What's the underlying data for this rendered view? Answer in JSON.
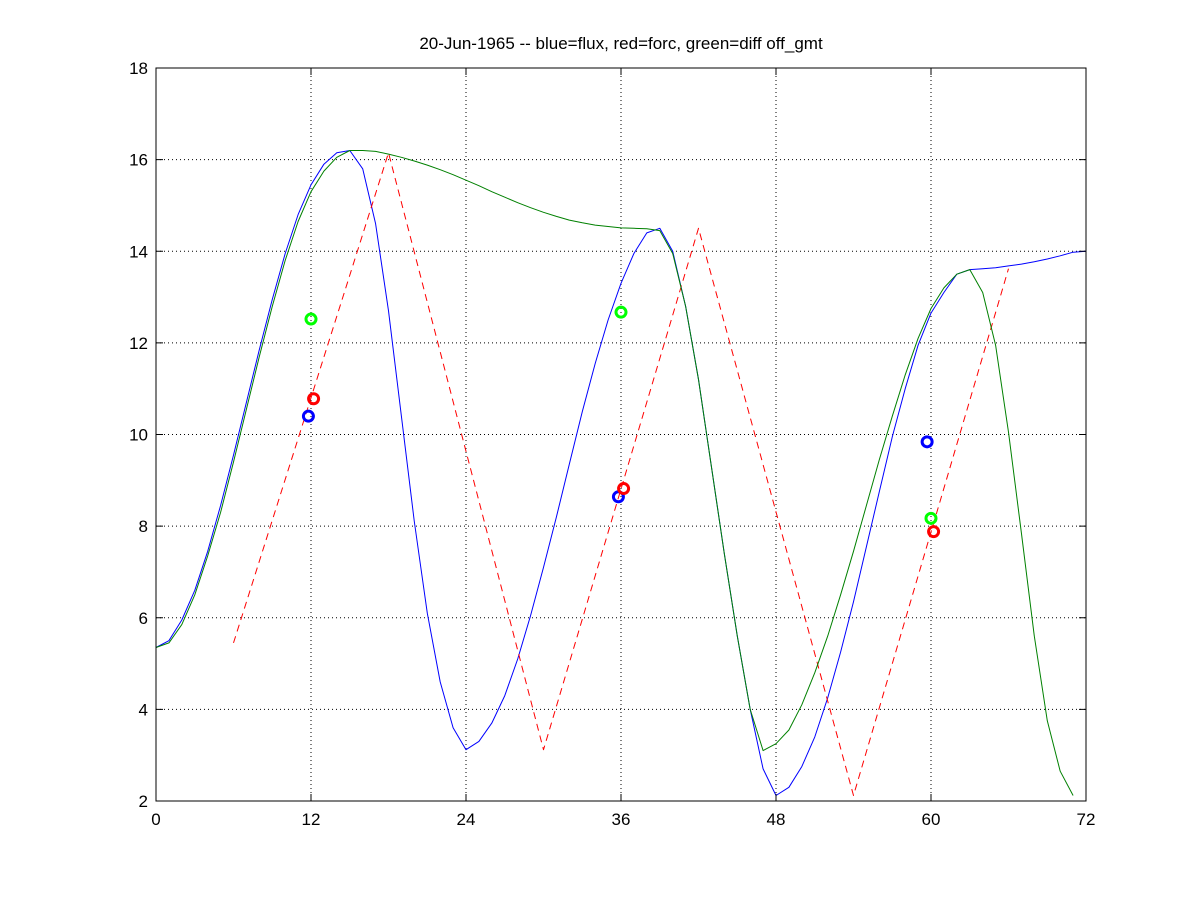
{
  "chart_data": {
    "type": "line",
    "title": "20-Jun-1965 -- blue=flux, red=forc, green=diff off_gmt",
    "xlabel": "",
    "ylabel": "",
    "xlim": [
      0,
      72
    ],
    "ylim": [
      2,
      18
    ],
    "xticks": [
      0,
      12,
      24,
      36,
      48,
      60,
      72
    ],
    "yticks": [
      2,
      4,
      6,
      8,
      10,
      12,
      14,
      16,
      18
    ],
    "grid": true,
    "series": [
      {
        "color": "#0000ff",
        "style": "solid",
        "points": [
          [
            0,
            5.35
          ],
          [
            1,
            5.5
          ],
          [
            2,
            5.95
          ],
          [
            3,
            6.6
          ],
          [
            4,
            7.45
          ],
          [
            5,
            8.45
          ],
          [
            6,
            9.55
          ],
          [
            7,
            10.7
          ],
          [
            8,
            11.85
          ],
          [
            9,
            12.95
          ],
          [
            10,
            13.95
          ],
          [
            11,
            14.8
          ],
          [
            12,
            15.45
          ],
          [
            13,
            15.9
          ],
          [
            14,
            16.15
          ],
          [
            15,
            16.2
          ],
          [
            16,
            15.8
          ],
          [
            17,
            14.6
          ],
          [
            18,
            12.7
          ],
          [
            19,
            10.4
          ],
          [
            20,
            8.1
          ],
          [
            21,
            6.1
          ],
          [
            22,
            4.6
          ],
          [
            23,
            3.6
          ],
          [
            24,
            3.12
          ],
          [
            25,
            3.3
          ],
          [
            26,
            3.7
          ],
          [
            27,
            4.3
          ],
          [
            28,
            5.1
          ],
          [
            29,
            6.05
          ],
          [
            30,
            7.1
          ],
          [
            31,
            8.2
          ],
          [
            32,
            9.35
          ],
          [
            33,
            10.5
          ],
          [
            34,
            11.55
          ],
          [
            35,
            12.5
          ],
          [
            36,
            13.3
          ],
          [
            37,
            13.95
          ],
          [
            38,
            14.4
          ],
          [
            39,
            14.5
          ],
          [
            40,
            14.0
          ],
          [
            41,
            12.8
          ],
          [
            42,
            11.2
          ],
          [
            43,
            9.3
          ],
          [
            44,
            7.4
          ],
          [
            45,
            5.6
          ],
          [
            46,
            4.0
          ],
          [
            47,
            2.7
          ],
          [
            48,
            2.12
          ],
          [
            49,
            2.3
          ],
          [
            50,
            2.75
          ],
          [
            51,
            3.4
          ],
          [
            52,
            4.25
          ],
          [
            53,
            5.25
          ],
          [
            54,
            6.35
          ],
          [
            55,
            7.55
          ],
          [
            56,
            8.75
          ],
          [
            57,
            9.95
          ],
          [
            58,
            11.0
          ],
          [
            59,
            11.95
          ],
          [
            60,
            12.65
          ],
          [
            61,
            13.1
          ],
          [
            62,
            13.5
          ],
          [
            63,
            13.6
          ],
          [
            64,
            13.62
          ],
          [
            65,
            13.64
          ],
          [
            66,
            13.68
          ],
          [
            67,
            13.72
          ],
          [
            68,
            13.77
          ],
          [
            69,
            13.83
          ],
          [
            70,
            13.9
          ],
          [
            71,
            13.98
          ],
          [
            72,
            14.0
          ]
        ]
      },
      {
        "color": "#ff0000",
        "style": "dashed",
        "points": [
          [
            6,
            5.45
          ],
          [
            18,
            16.15
          ],
          [
            30,
            3.12
          ],
          [
            42,
            14.5
          ],
          [
            54,
            2.12
          ],
          [
            66,
            13.62
          ]
        ]
      },
      {
        "color": "#008000",
        "style": "solid",
        "points": [
          [
            0,
            5.35
          ],
          [
            1,
            5.45
          ],
          [
            2,
            5.85
          ],
          [
            3,
            6.5
          ],
          [
            4,
            7.35
          ],
          [
            5,
            8.3
          ],
          [
            6,
            9.4
          ],
          [
            7,
            10.55
          ],
          [
            8,
            11.7
          ],
          [
            9,
            12.8
          ],
          [
            10,
            13.8
          ],
          [
            11,
            14.65
          ],
          [
            12,
            15.3
          ],
          [
            13,
            15.75
          ],
          [
            14,
            16.05
          ],
          [
            15,
            16.2
          ],
          [
            16,
            16.2
          ],
          [
            17,
            16.18
          ],
          [
            18,
            16.12
          ],
          [
            19,
            16.05
          ],
          [
            20,
            15.97
          ],
          [
            21,
            15.88
          ],
          [
            22,
            15.78
          ],
          [
            23,
            15.67
          ],
          [
            24,
            15.55
          ],
          [
            25,
            15.43
          ],
          [
            26,
            15.3
          ],
          [
            27,
            15.18
          ],
          [
            28,
            15.06
          ],
          [
            29,
            14.95
          ],
          [
            30,
            14.85
          ],
          [
            31,
            14.76
          ],
          [
            32,
            14.68
          ],
          [
            33,
            14.62
          ],
          [
            34,
            14.57
          ],
          [
            35,
            14.54
          ],
          [
            36,
            14.51
          ],
          [
            37,
            14.5
          ],
          [
            38,
            14.49
          ],
          [
            39,
            14.45
          ],
          [
            40,
            13.95
          ],
          [
            41,
            12.8
          ],
          [
            42,
            11.2
          ],
          [
            43,
            9.3
          ],
          [
            44,
            7.4
          ],
          [
            45,
            5.6
          ],
          [
            46,
            4.0
          ],
          [
            47,
            3.1
          ],
          [
            48,
            3.25
          ],
          [
            49,
            3.55
          ],
          [
            50,
            4.1
          ],
          [
            51,
            4.8
          ],
          [
            52,
            5.6
          ],
          [
            53,
            6.5
          ],
          [
            54,
            7.45
          ],
          [
            55,
            8.45
          ],
          [
            56,
            9.45
          ],
          [
            57,
            10.4
          ],
          [
            58,
            11.3
          ],
          [
            59,
            12.1
          ],
          [
            60,
            12.75
          ],
          [
            61,
            13.2
          ],
          [
            62,
            13.5
          ],
          [
            63,
            13.6
          ],
          [
            64,
            13.1
          ],
          [
            65,
            11.95
          ],
          [
            66,
            10.05
          ],
          [
            67,
            7.85
          ],
          [
            68,
            5.6
          ],
          [
            69,
            3.75
          ],
          [
            70,
            2.65
          ],
          [
            71,
            2.12
          ]
        ]
      }
    ],
    "markers": [
      {
        "color": "#0000ff",
        "x": 11.8,
        "y": 10.4
      },
      {
        "color": "#ff0000",
        "x": 12.2,
        "y": 10.78
      },
      {
        "color": "#00ff00",
        "x": 12.0,
        "y": 12.52
      },
      {
        "color": "#0000ff",
        "x": 35.8,
        "y": 8.64
      },
      {
        "color": "#ff0000",
        "x": 36.2,
        "y": 8.82
      },
      {
        "color": "#00ff00",
        "x": 36.0,
        "y": 12.67
      },
      {
        "color": "#0000ff",
        "x": 59.7,
        "y": 9.84
      },
      {
        "color": "#ff0000",
        "x": 60.2,
        "y": 7.88
      },
      {
        "color": "#00ff00",
        "x": 60.0,
        "y": 8.17
      }
    ]
  }
}
